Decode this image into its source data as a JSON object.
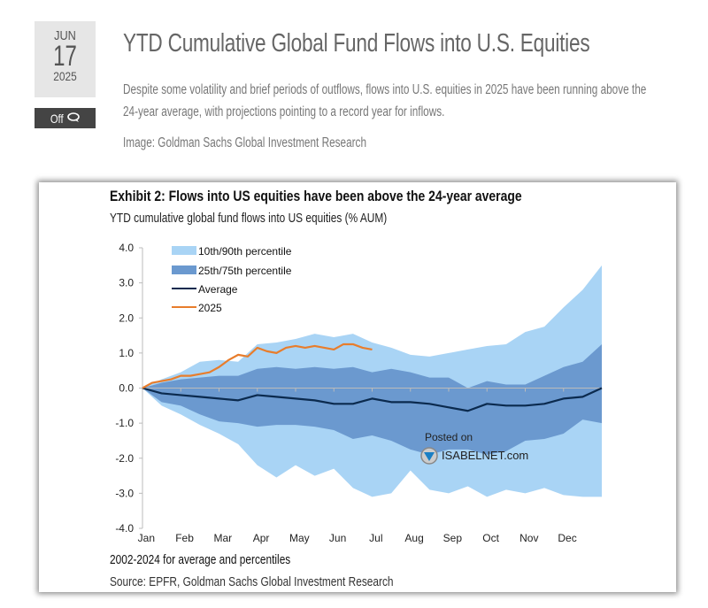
{
  "post": {
    "date": {
      "month": "JUN",
      "day": "17",
      "year": "2025"
    },
    "comments": {
      "label": "Off",
      "icon": "comment-bubbles-icon"
    },
    "title": "YTD Cumulative Global Fund Flows into U.S. Equities",
    "description": "Despite some volatility and brief periods of outflows, flows into U.S. equities in 2025 have been running above the 24-year average, with projections pointing to a record year for inflows.",
    "credit": "Image: Goldman Sachs Global Investment Research"
  },
  "exhibit": {
    "title": "Exhibit 2: Flows into US equities have been above the 24-year average",
    "subtitle": "YTD cumulative global fund flows into US equities (% AUM)",
    "note": "2002-2024 for average and percentiles",
    "source": "Source: EPFR, Goldman Sachs Global Investment Research",
    "watermark": {
      "line1": "Posted on",
      "line2": "ISABELNET.com"
    }
  },
  "chart_data": {
    "type": "area",
    "title": "Exhibit 2: Flows into US equities have been above the 24-year average",
    "subtitle": "YTD cumulative global fund flows into US equities (% AUM)",
    "xlabel": "",
    "ylabel": "",
    "ylim": [
      -4.0,
      4.0
    ],
    "xlim": [
      0,
      12
    ],
    "yticks": [
      "4.0",
      "3.0",
      "2.0",
      "1.0",
      "0.0",
      "-1.0",
      "-2.0",
      "-3.0",
      "-4.0"
    ],
    "ytick_values": [
      4,
      3,
      2,
      1,
      0,
      -1,
      -2,
      -3,
      -4
    ],
    "categories": [
      "Jan",
      "Feb",
      "Mar",
      "Apr",
      "May",
      "Jun",
      "Jul",
      "Aug",
      "Sep",
      "Oct",
      "Nov",
      "Dec"
    ],
    "legend": {
      "position": "top-left",
      "entries": [
        "10th/90th percentile",
        "25th/75th percentile",
        "Average",
        "2025"
      ]
    },
    "colors": {
      "band_10_90": "#a9d4f5",
      "band_25_75": "#6b99cf",
      "average": "#0b2a4e",
      "y2025": "#e87d2c",
      "zero_line": "#bbbbbb"
    },
    "x": [
      0,
      0.5,
      1,
      1.5,
      2,
      2.5,
      3,
      3.5,
      4,
      4.5,
      5,
      5.5,
      6,
      6.5,
      7,
      7.5,
      8,
      8.5,
      9,
      9.5,
      10,
      10.5,
      11,
      11.5,
      12
    ],
    "series": [
      {
        "name": "90th percentile",
        "values": [
          0,
          0.25,
          0.45,
          0.75,
          0.8,
          0.75,
          1.25,
          1.3,
          1.4,
          1.55,
          1.45,
          1.55,
          1.3,
          1.15,
          0.95,
          0.9,
          1.0,
          1.1,
          1.2,
          1.25,
          1.6,
          1.75,
          2.3,
          2.8,
          3.5
        ]
      },
      {
        "name": "75th percentile",
        "values": [
          0,
          0.15,
          0.25,
          0.3,
          0.35,
          0.35,
          0.55,
          0.6,
          0.55,
          0.6,
          0.55,
          0.6,
          0.45,
          0.55,
          0.45,
          0.3,
          0.3,
          0.0,
          0.2,
          0.1,
          0.1,
          0.35,
          0.6,
          0.75,
          1.25
        ]
      },
      {
        "name": "Average",
        "values": [
          0,
          -0.15,
          -0.2,
          -0.25,
          -0.3,
          -0.35,
          -0.2,
          -0.25,
          -0.3,
          -0.35,
          -0.45,
          -0.45,
          -0.3,
          -0.4,
          -0.4,
          -0.45,
          -0.55,
          -0.65,
          -0.45,
          -0.5,
          -0.5,
          -0.45,
          -0.3,
          -0.25,
          0.0
        ]
      },
      {
        "name": "25th percentile",
        "values": [
          0,
          -0.4,
          -0.5,
          -0.75,
          -0.95,
          -1.0,
          -1.1,
          -1.05,
          -1.05,
          -1.1,
          -1.2,
          -1.45,
          -1.35,
          -1.5,
          -1.75,
          -1.9,
          -1.75,
          -1.75,
          -1.9,
          -1.8,
          -1.5,
          -1.45,
          -1.3,
          -0.9,
          -1.0
        ]
      },
      {
        "name": "10th percentile",
        "values": [
          0,
          -0.5,
          -0.75,
          -1.05,
          -1.3,
          -1.6,
          -2.2,
          -2.55,
          -2.2,
          -2.5,
          -2.3,
          -2.85,
          -3.1,
          -3.0,
          -2.35,
          -2.9,
          -3.0,
          -2.8,
          -3.1,
          -2.9,
          -3.0,
          -2.85,
          -3.05,
          -3.1,
          -3.1
        ]
      }
    ],
    "series_2025": {
      "name": "2025",
      "x": [
        0,
        0.25,
        0.5,
        0.75,
        1,
        1.25,
        1.5,
        1.75,
        2,
        2.25,
        2.5,
        2.75,
        3,
        3.25,
        3.5,
        3.75,
        4,
        4.25,
        4.5,
        4.75,
        5,
        5.25,
        5.5,
        5.75,
        6
      ],
      "values": [
        0,
        0.15,
        0.2,
        0.25,
        0.35,
        0.35,
        0.4,
        0.45,
        0.6,
        0.8,
        0.95,
        0.9,
        1.15,
        1.05,
        1.0,
        1.15,
        1.2,
        1.15,
        1.2,
        1.15,
        1.1,
        1.25,
        1.25,
        1.15,
        1.1
      ]
    }
  }
}
